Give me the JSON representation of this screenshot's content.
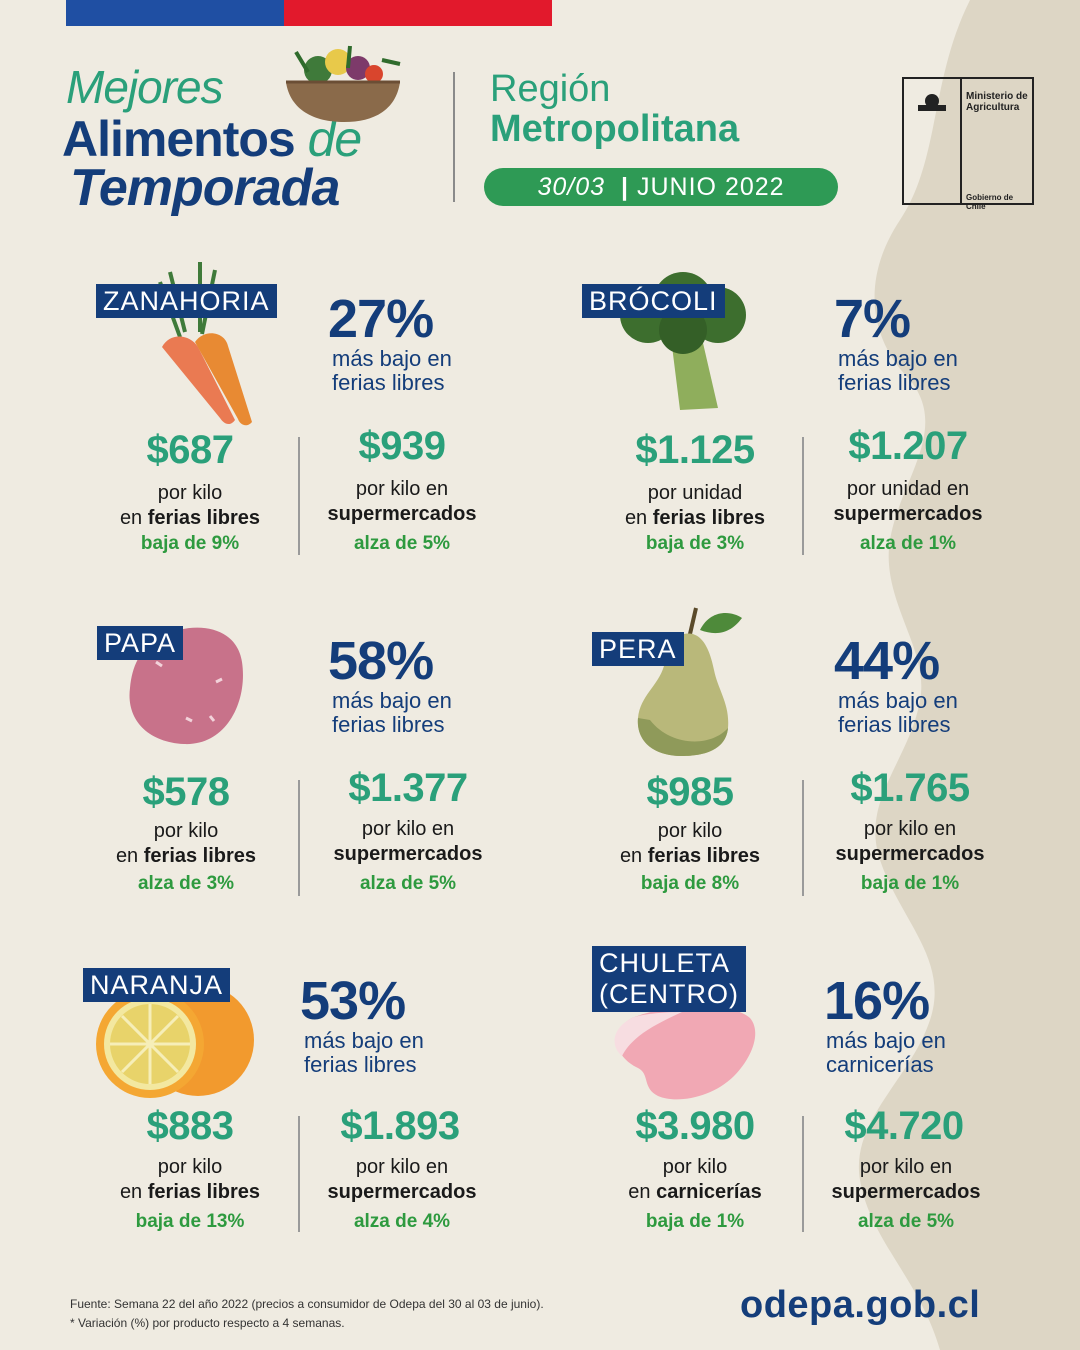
{
  "header": {
    "title_line1": "Mejores",
    "title_line2": "Alimentos",
    "title_line2_suffix": "de",
    "title_line3": "Temporada",
    "region_label": "Región",
    "region_name": "Metropolitana",
    "date_range": "30/03",
    "date_month": "JUNIO 2022",
    "ministry_name": "Ministerio de Agricultura",
    "government": "Gobierno de Chile"
  },
  "products": [
    {
      "name": "ZANAHORIA",
      "pct": "27%",
      "pct_desc1": "más bajo en",
      "pct_desc2": "ferias libres",
      "price_a": "$687",
      "unit_a1": "por kilo",
      "unit_a_pre": "en ",
      "unit_a2": "ferias libres",
      "chg_a": "baja de 9%",
      "price_b": "$939",
      "unit_b1": "por kilo en",
      "unit_b2": "supermercados",
      "chg_b": "alza de 5%"
    },
    {
      "name": "BRÓCOLI",
      "pct": "7%",
      "pct_desc1": "más bajo en",
      "pct_desc2": "ferias libres",
      "price_a": "$1.125",
      "unit_a1": "por unidad",
      "unit_a_pre": "en ",
      "unit_a2": "ferias libres",
      "chg_a": "baja de 3%",
      "price_b": "$1.207",
      "unit_b1": "por unidad en",
      "unit_b2": "supermercados",
      "chg_b": "alza de 1%"
    },
    {
      "name": "PAPA",
      "pct": "58%",
      "pct_desc1": "más bajo en",
      "pct_desc2": "ferias libres",
      "price_a": "$578",
      "unit_a1": "por kilo",
      "unit_a_pre": "en ",
      "unit_a2": "ferias libres",
      "chg_a": "alza de 3%",
      "price_b": "$1.377",
      "unit_b1": "por kilo en",
      "unit_b2": "supermercados",
      "chg_b": "alza de 5%"
    },
    {
      "name": "PERA",
      "pct": "44%",
      "pct_desc1": "más bajo en",
      "pct_desc2": "ferias libres",
      "price_a": "$985",
      "unit_a1": "por kilo",
      "unit_a_pre": "en ",
      "unit_a2": "ferias libres",
      "chg_a": "baja de 8%",
      "price_b": "$1.765",
      "unit_b1": "por kilo en",
      "unit_b2": "supermercados",
      "chg_b": "baja de 1%"
    },
    {
      "name": "NARANJA",
      "pct": "53%",
      "pct_desc1": "más bajo en",
      "pct_desc2": "ferias libres",
      "price_a": "$883",
      "unit_a1": "por kilo",
      "unit_a_pre": "en ",
      "unit_a2": "ferias libres",
      "chg_a": "baja de 13%",
      "price_b": "$1.893",
      "unit_b1": "por kilo en",
      "unit_b2": "supermercados",
      "chg_b": "alza de 4%"
    },
    {
      "name": "CHULETA",
      "name2": "(CENTRO)",
      "pct": "16%",
      "pct_desc1": "más bajo en",
      "pct_desc2": "carnicerías",
      "price_a": "$3.980",
      "unit_a1": "por kilo",
      "unit_a_pre": "en ",
      "unit_a2": "carnicerías",
      "chg_a": "baja de 1%",
      "price_b": "$4.720",
      "unit_b1": "por kilo en",
      "unit_b2": "supermercados",
      "chg_b": "alza de 5%"
    }
  ],
  "footer": {
    "source": "Fuente: Semana 22 del año 2022 (precios a consumidor de Odepa del 30 al 03 de junio).",
    "note": "* Variación (%) por producto respecto a 4 semanas.",
    "website": "odepa.gob.cl"
  },
  "colors": {
    "navy": "#143d7a",
    "teal": "#2aa07a",
    "green": "#2e9a3f",
    "background": "#efebe1"
  }
}
